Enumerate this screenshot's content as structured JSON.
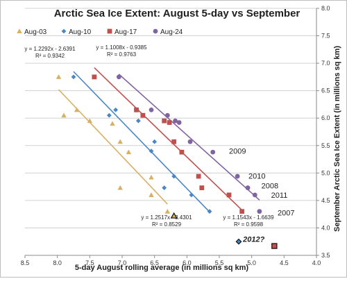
{
  "chart_data": {
    "type": "scatter",
    "title": "Arctic Sea Ice Extent: August 5-day vs September",
    "xlabel": "5-day August rolling average (in millions sq km)",
    "ylabel": "September Arctic Sea Ice Extent (in millions sq km)",
    "xlim": [
      8.5,
      4.0
    ],
    "ylim": [
      3.5,
      8.0
    ],
    "x_reversed": true,
    "xticks": [
      "8.5",
      "8.0",
      "7.5",
      "7.0",
      "6.5",
      "6.0",
      "5.5",
      "5.0",
      "4.5",
      "4.0"
    ],
    "yticks": [
      "3.5",
      "4.0",
      "4.5",
      "5.0",
      "5.5",
      "6.0",
      "6.5",
      "7.0",
      "7.5",
      "8.0"
    ],
    "grid": "horizontal",
    "legend_position": "top-left",
    "series": [
      {
        "name": "Aug-03",
        "marker": "triangle",
        "color": "#d8b064",
        "trendline": true,
        "points": [
          [
            7.98,
            6.75
          ],
          [
            7.9,
            6.05
          ],
          [
            7.7,
            6.15
          ],
          [
            7.5,
            5.95
          ],
          [
            7.15,
            5.9
          ],
          [
            7.03,
            5.57
          ],
          [
            6.9,
            5.38
          ],
          [
            7.03,
            4.73
          ],
          [
            6.55,
            4.92
          ],
          [
            6.55,
            4.6
          ],
          [
            6.3,
            4.3
          ]
        ],
        "equation": "y = 1.2517x - 3.4301",
        "r2": "R² = 0.8529"
      },
      {
        "name": "Aug-10",
        "marker": "diamond",
        "color": "#4a86c6",
        "trendline": true,
        "points": [
          [
            7.75,
            6.75
          ],
          [
            7.2,
            6.05
          ],
          [
            7.1,
            6.15
          ],
          [
            6.75,
            5.95
          ],
          [
            6.55,
            5.4
          ],
          [
            6.5,
            5.57
          ],
          [
            6.2,
            4.94
          ],
          [
            6.35,
            4.73
          ],
          [
            5.93,
            4.6
          ],
          [
            5.65,
            4.3
          ]
        ],
        "equation": "y = 1.2292x - 2.6391",
        "r2": "R² = 0.9342"
      },
      {
        "name": "Aug-17",
        "marker": "square",
        "color": "#c0504d",
        "trendline": true,
        "points": [
          [
            7.43,
            6.75
          ],
          [
            6.78,
            6.15
          ],
          [
            6.68,
            6.05
          ],
          [
            6.35,
            5.95
          ],
          [
            6.27,
            5.92
          ],
          [
            6.2,
            5.57
          ],
          [
            6.08,
            5.38
          ],
          [
            5.82,
            4.94
          ],
          [
            5.77,
            4.73
          ],
          [
            5.35,
            4.6
          ],
          [
            5.15,
            4.3
          ]
        ],
        "equation": "y = 1.1543x - 1.6639",
        "r2": "R² = 0.9598"
      },
      {
        "name": "Aug-24",
        "marker": "circle",
        "color": "#8064a2",
        "trendline": true,
        "points": [
          [
            7.05,
            6.75
          ],
          [
            6.55,
            6.15
          ],
          [
            6.3,
            6.05
          ],
          [
            6.18,
            5.95
          ],
          [
            6.12,
            5.92
          ],
          [
            5.95,
            5.57
          ],
          [
            5.6,
            5.38
          ],
          [
            5.22,
            4.94
          ],
          [
            5.06,
            4.73
          ],
          [
            4.95,
            4.6
          ],
          [
            4.88,
            4.3
          ]
        ],
        "equation": "y = 1.1008x - 0.9385",
        "r2": "R² = 0.9763"
      }
    ],
    "highlight_points": [
      {
        "x": 6.2,
        "y": 4.22,
        "marker": "triangle",
        "color": "#d8b064"
      },
      {
        "x": 5.2,
        "y": 3.75,
        "marker": "diamond",
        "color": "#4a86c6"
      },
      {
        "x": 4.65,
        "y": 3.67,
        "marker": "square",
        "color": "#c0504d",
        "label": "2012?"
      }
    ],
    "year_labels": [
      {
        "text": "2009",
        "x": 5.5,
        "y": 5.4
      },
      {
        "text": "2010",
        "x": 5.2,
        "y": 4.95
      },
      {
        "text": "2008",
        "x": 5.0,
        "y": 4.77
      },
      {
        "text": "2011",
        "x": 4.85,
        "y": 4.6
      },
      {
        "text": "2007",
        "x": 4.75,
        "y": 4.28
      }
    ]
  }
}
